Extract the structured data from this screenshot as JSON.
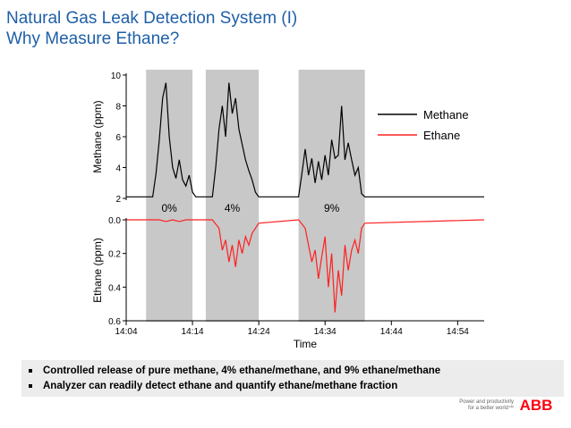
{
  "slide": {
    "title": "Natural Gas Leak Detection System (I)",
    "subtitle": "Why Measure Ethane?",
    "bullets": [
      "Controlled release of pure methane, 4% ethane/methane, and 9% ethane/methane",
      "Analyzer can readily detect ethane and quantify ethane/methane fraction"
    ],
    "footer_tagline": [
      "Power and productivity",
      "for a better world™"
    ],
    "logo_text": "ABB",
    "colors": {
      "title": "#1f5fa8",
      "methane": "#000000",
      "ethane": "#ff2020",
      "shade": "#c8c8c8",
      "logo": "#ff000f"
    }
  },
  "chart_data": {
    "type": "line",
    "xlabel": "Time",
    "x_ticks": [
      "14:04",
      "14:14",
      "14:24",
      "14:34",
      "14:44",
      "14:54"
    ],
    "xlim": [
      "14:04",
      "14:58"
    ],
    "legend_placement": "top-right",
    "panels": [
      {
        "name": "methane",
        "ylabel": "Methane (ppm)",
        "ylim": [
          2,
          10
        ],
        "y_ticks": [
          2,
          4,
          6,
          8,
          10
        ],
        "series": [
          {
            "name": "Methane",
            "color": "#000000",
            "x": [
              "14:04",
              "14:08",
              "14:08.5",
              "14:09",
              "14:09.5",
              "14:10",
              "14:10.5",
              "14:11",
              "14:11.5",
              "14:12",
              "14:12.5",
              "14:13",
              "14:13.5",
              "14:14",
              "14:14.5",
              "14:15",
              "14:17",
              "14:17.5",
              "14:18",
              "14:18.5",
              "14:19",
              "14:19.5",
              "14:20",
              "14:20.5",
              "14:21",
              "14:21.5",
              "14:22",
              "14:22.5",
              "14:23",
              "14:23.5",
              "14:24",
              "14:30",
              "14:30.5",
              "14:31",
              "14:31.5",
              "14:32",
              "14:32.5",
              "14:33",
              "14:33.5",
              "14:34",
              "14:34.5",
              "14:35",
              "14:35.5",
              "14:36",
              "14:36.5",
              "14:37",
              "14:37.5",
              "14:38",
              "14:38.5",
              "14:39",
              "14:39.5",
              "14:40",
              "14:58"
            ],
            "y": [
              2.1,
              2.1,
              3.6,
              5.8,
              8.5,
              9.5,
              6.0,
              4.0,
              3.3,
              4.5,
              3.2,
              2.8,
              3.5,
              2.4,
              2.1,
              2.1,
              2.1,
              4.0,
              6.5,
              8.0,
              6.0,
              9.5,
              7.5,
              8.5,
              6.5,
              5.5,
              4.5,
              3.8,
              3.2,
              2.4,
              2.1,
              2.1,
              3.6,
              5.2,
              3.5,
              4.6,
              3.0,
              4.4,
              3.2,
              4.8,
              3.5,
              5.8,
              4.6,
              4.8,
              8.0,
              4.5,
              5.6,
              4.5,
              3.5,
              4.0,
              2.3,
              2.1,
              2.1
            ]
          }
        ]
      },
      {
        "name": "ethane",
        "ylabel": "Ethane (ppm)",
        "ylim": [
          0.6,
          0.0
        ],
        "y_ticks": [
          0.0,
          0.2,
          0.4,
          0.6
        ],
        "series": [
          {
            "name": "Ethane",
            "color": "#ff2020",
            "x": [
              "14:04",
              "14:08",
              "14:09",
              "14:10",
              "14:11",
              "14:12",
              "14:13",
              "14:14",
              "14:17",
              "14:18",
              "14:18.5",
              "14:19",
              "14:19.5",
              "14:20",
              "14:20.5",
              "14:21",
              "14:21.5",
              "14:22",
              "14:22.5",
              "14:23",
              "14:23.5",
              "14:24",
              "14:30",
              "14:31",
              "14:31.5",
              "14:32",
              "14:32.5",
              "14:33",
              "14:33.5",
              "14:34",
              "14:34.5",
              "14:35",
              "14:35.5",
              "14:36",
              "14:36.5",
              "14:37",
              "14:37.5",
              "14:38",
              "14:38.5",
              "14:39",
              "14:39.5",
              "14:40",
              "14:58"
            ],
            "y": [
              0.0,
              0.0,
              0.0,
              0.01,
              0.0,
              0.01,
              0.0,
              0.0,
              0.0,
              0.05,
              0.18,
              0.12,
              0.25,
              0.15,
              0.28,
              0.12,
              0.2,
              0.1,
              0.15,
              0.08,
              0.05,
              0.02,
              0.0,
              0.05,
              0.15,
              0.25,
              0.18,
              0.35,
              0.22,
              0.1,
              0.4,
              0.2,
              0.55,
              0.3,
              0.45,
              0.15,
              0.3,
              0.18,
              0.12,
              0.2,
              0.05,
              0.02,
              0.0
            ]
          }
        ]
      }
    ],
    "release_windows": [
      {
        "label": "0%",
        "start": "14:07",
        "end": "14:14"
      },
      {
        "label": "4%",
        "start": "14:16",
        "end": "14:24"
      },
      {
        "label": "9%",
        "start": "14:30",
        "end": "14:40"
      }
    ]
  }
}
